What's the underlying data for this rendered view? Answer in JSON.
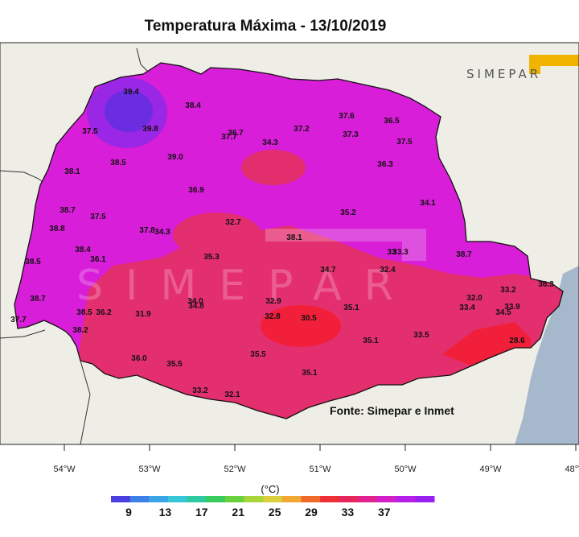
{
  "title": "Temperatura Máxima - 13/10/2019",
  "logo_text": "SIMEPAR",
  "source_label": "Fonte: Simepar e Inmet",
  "unit_label": "(°C)",
  "colors": {
    "ocean": "#a6b8cc",
    "land_outside": "#eeede6",
    "state_base": "#d81ed8",
    "hot_zone": "#e42f6e",
    "very_hot": "#f21f3a",
    "cooler": "#9a26e6",
    "coolest": "#6a2de0"
  },
  "colorbar": {
    "ticks": [
      "9",
      "13",
      "17",
      "21",
      "25",
      "29",
      "33",
      "37"
    ],
    "colors": [
      "#4a3fe0",
      "#3f7fe8",
      "#3aa5e6",
      "#35c7d6",
      "#2ec9a0",
      "#38cc5c",
      "#6ad13c",
      "#a8d63a",
      "#d8cf3a",
      "#f0a832",
      "#f06a2a",
      "#ee2f38",
      "#e8245c",
      "#e02290",
      "#d41ec8",
      "#b61eea",
      "#9a20f0"
    ]
  },
  "x_axis": {
    "ticks": [
      "54°W",
      "53°W",
      "52°W",
      "51°W",
      "50°W",
      "49°W",
      "48°W"
    ]
  },
  "stations": [
    {
      "v": "39.4"
    },
    {
      "v": "38.4"
    },
    {
      "v": "39.8"
    },
    {
      "v": "37.5"
    },
    {
      "v": "38.5"
    },
    {
      "v": "39.0"
    },
    {
      "v": "38.1"
    },
    {
      "v": "36.7"
    },
    {
      "v": "37.7"
    },
    {
      "v": "34.3"
    },
    {
      "v": "37.2"
    },
    {
      "v": "37.6"
    },
    {
      "v": "36.5"
    },
    {
      "v": "37.3"
    },
    {
      "v": "37.5"
    },
    {
      "v": "36.3"
    },
    {
      "v": "36.9"
    },
    {
      "v": "38.7"
    },
    {
      "v": "37.5"
    },
    {
      "v": "38.8"
    },
    {
      "v": "32.7"
    },
    {
      "v": "35.2"
    },
    {
      "v": "34.1"
    },
    {
      "v": "37.8"
    },
    {
      "v": "34.3"
    },
    {
      "v": "38.1"
    },
    {
      "v": "38.4"
    },
    {
      "v": "36.1"
    },
    {
      "v": "35.3"
    },
    {
      "v": "33.3"
    },
    {
      "v": "38.5"
    },
    {
      "v": "34.7"
    },
    {
      "v": "32.4"
    },
    {
      "v": "38.7"
    },
    {
      "v": "38.7"
    },
    {
      "v": "34.0"
    },
    {
      "v": "34.8"
    },
    {
      "v": "32.9"
    },
    {
      "v": "35.1"
    },
    {
      "v": "33.2"
    },
    {
      "v": "36.3"
    },
    {
      "v": "38.5"
    },
    {
      "v": "36.2"
    },
    {
      "v": "31.9"
    },
    {
      "v": "32.8"
    },
    {
      "v": "30.5"
    },
    {
      "v": "33.4"
    },
    {
      "v": "32.0"
    },
    {
      "v": "33.9"
    },
    {
      "v": "34.5"
    },
    {
      "v": "37.7"
    },
    {
      "v": "38.2"
    },
    {
      "v": "35.1"
    },
    {
      "v": "33.5"
    },
    {
      "v": "28.6"
    },
    {
      "v": "36.0"
    },
    {
      "v": "35.5"
    },
    {
      "v": "35.5"
    },
    {
      "v": "35.1"
    },
    {
      "v": "33.2"
    },
    {
      "v": "32.1"
    },
    {
      "v": "33"
    }
  ]
}
